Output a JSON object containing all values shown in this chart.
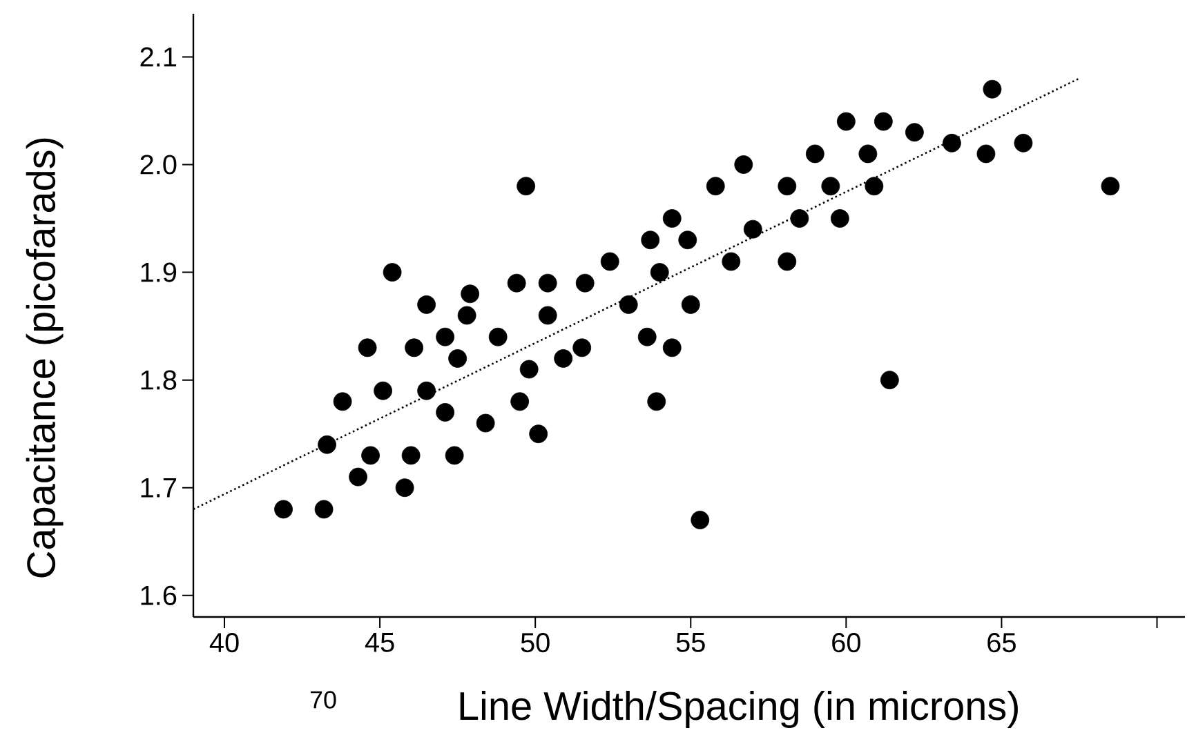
{
  "chart_data": {
    "type": "scatter",
    "xlabel": "Line Width/Spacing (in microns)",
    "ylabel": "Capacitance (picofarads)",
    "annotations": [
      "70"
    ],
    "xlim": [
      39,
      70.9
    ],
    "ylim": [
      1.58,
      2.14
    ],
    "xticks": [
      40,
      45,
      50,
      55,
      60,
      65,
      {
        "value": 70,
        "label": null
      }
    ],
    "yticks": [
      1.6,
      1.7,
      1.8,
      1.9,
      {
        "value": 2,
        "label": "2.0"
      },
      2.1
    ],
    "series": [
      {
        "color": "#000000",
        "marker": "circle",
        "x": [
          45.4,
          49.7,
          55.8,
          54.4,
          53.7,
          54.9,
          52.4,
          54.0,
          47.9,
          49.4,
          50.4,
          51.6,
          46.5,
          47.8,
          50.4,
          53.0,
          53.6,
          55.0,
          47.1,
          48.8,
          44.6,
          46.1,
          54.4,
          51.5,
          47.5,
          49.8,
          50.9,
          43.8,
          45.1,
          46.5,
          47.1,
          48.4,
          49.5,
          50.1,
          53.9,
          43.3,
          44.7,
          46.0,
          47.4,
          44.3,
          45.8,
          41.9,
          43.2,
          55.3,
          56.7,
          60.0,
          61.2,
          62.2,
          64.7,
          59.0,
          60.7,
          63.4,
          64.5,
          65.7,
          68.5,
          58.1,
          59.5,
          60.9,
          57.0,
          58.5,
          59.8,
          56.3,
          58.1,
          61.4
        ],
        "values": [
          1.9,
          1.98,
          1.98,
          1.95,
          1.93,
          1.93,
          1.91,
          1.9,
          1.88,
          1.89,
          1.89,
          1.89,
          1.87,
          1.86,
          1.86,
          1.87,
          1.84,
          1.87,
          1.84,
          1.84,
          1.83,
          1.83,
          1.83,
          1.83,
          1.82,
          1.81,
          1.82,
          1.78,
          1.79,
          1.79,
          1.77,
          1.76,
          1.78,
          1.75,
          1.78,
          1.74,
          1.73,
          1.73,
          1.73,
          1.71,
          1.7,
          1.68,
          1.68,
          1.67,
          2.0,
          2.04,
          2.04,
          2.03,
          2.07,
          2.01,
          2.01,
          2.02,
          2.01,
          2.02,
          1.98,
          1.98,
          1.98,
          1.98,
          1.94,
          1.95,
          1.95,
          1.91,
          1.91,
          1.8
        ]
      },
      {
        "type": "line",
        "line_style": "dotted",
        "marker": "none",
        "color": "#000000",
        "x": [
          39.0,
          67.5
        ],
        "values": [
          1.68,
          2.08
        ]
      }
    ]
  }
}
